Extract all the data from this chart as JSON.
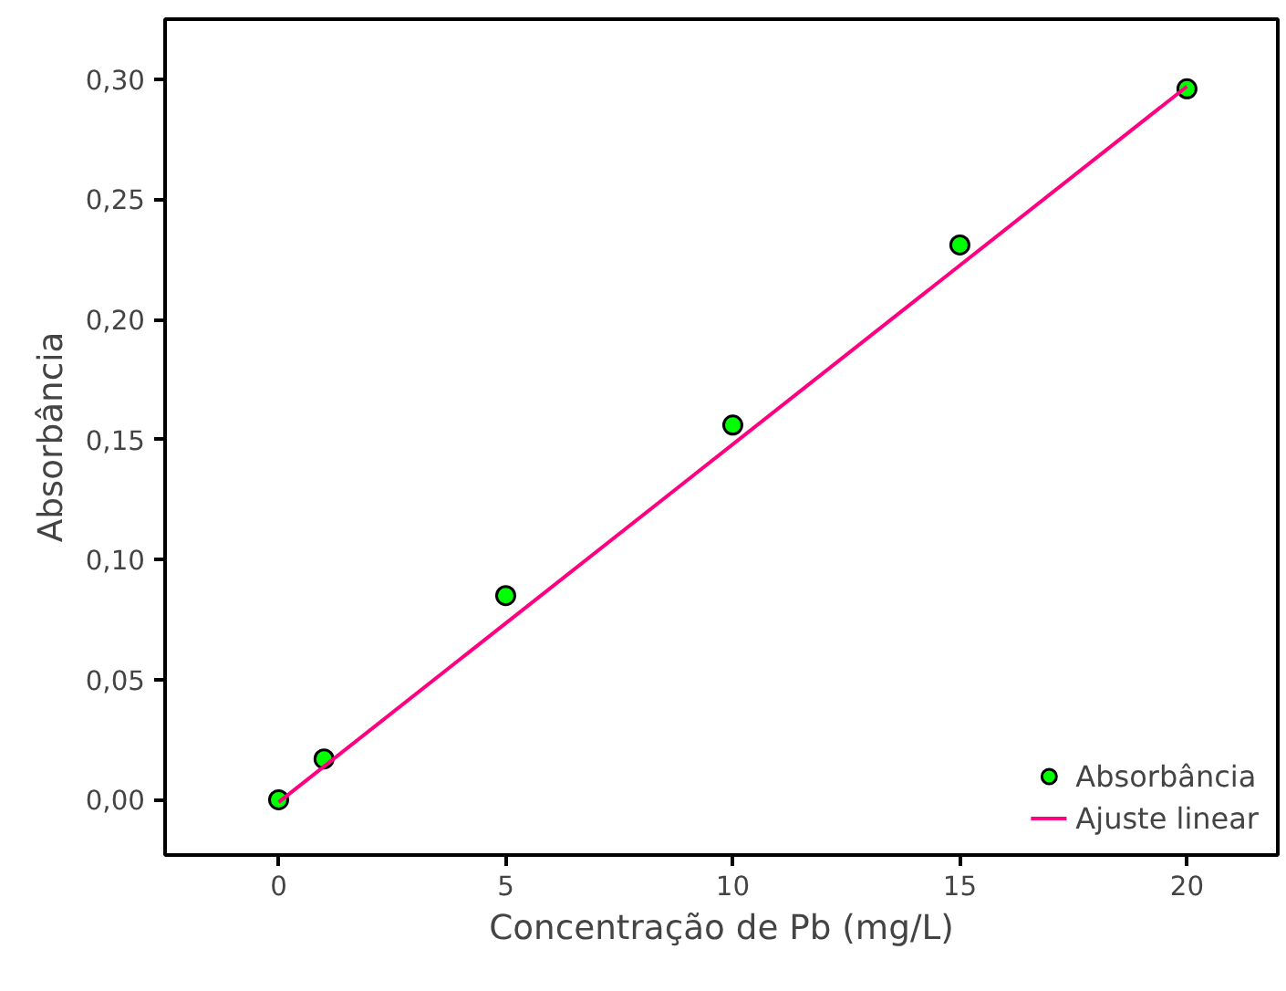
{
  "chart_data": {
    "type": "scatter",
    "xlabel": "Concentração de Pb (mg/L)",
    "ylabel": "Absorbância",
    "xlim": [
      -2.5,
      22
    ],
    "ylim": [
      -0.023,
      0.325
    ],
    "xticks": [
      0,
      5,
      10,
      15,
      20
    ],
    "yticks": [
      {
        "value": 0,
        "label": "0,00"
      },
      {
        "value": 0.05,
        "label": "0,05"
      },
      {
        "value": 0.1,
        "label": "0,10"
      },
      {
        "value": 0.15,
        "label": "0,15"
      },
      {
        "value": 0.2,
        "label": "0,20"
      },
      {
        "value": 0.25,
        "label": "0,25"
      },
      {
        "value": 0.3,
        "label": "0,30"
      }
    ],
    "series": [
      {
        "name": "Absorbância",
        "color": "#00ff00",
        "x": [
          0,
          1,
          5,
          10,
          15,
          20
        ],
        "values": [
          0.0,
          0.017,
          0.085,
          0.156,
          0.231,
          0.296
        ],
        "marker": "circle"
      },
      {
        "name": "Ajuste linear",
        "type": "line",
        "color": "#ff0080",
        "x": [
          0,
          20
        ],
        "values": [
          -0.001,
          0.297
        ],
        "line_style": "solid"
      }
    ],
    "legend": "bottom right",
    "grid": false
  }
}
